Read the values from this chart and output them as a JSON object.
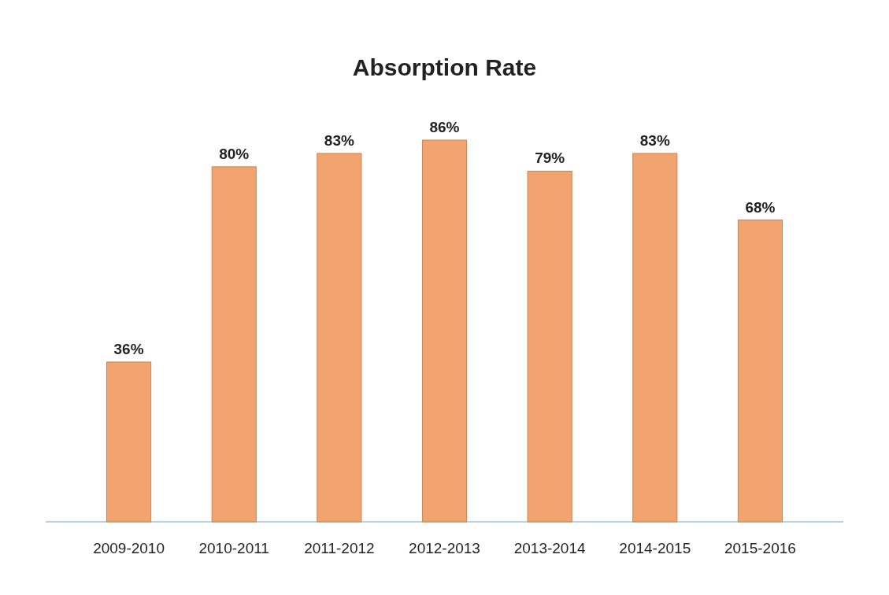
{
  "chart_data": {
    "type": "bar",
    "title": "Absorption Rate",
    "categories": [
      "2009-2010",
      "2010-2011",
      "2011-2012",
      "2012-2013",
      "2013-2014",
      "2014-2015",
      "2015-2016"
    ],
    "values": [
      36,
      80,
      83,
      86,
      79,
      83,
      68
    ],
    "value_labels": [
      "36%",
      "80%",
      "83%",
      "86%",
      "79%",
      "83%",
      "68%"
    ],
    "color": "#f2a470"
  }
}
